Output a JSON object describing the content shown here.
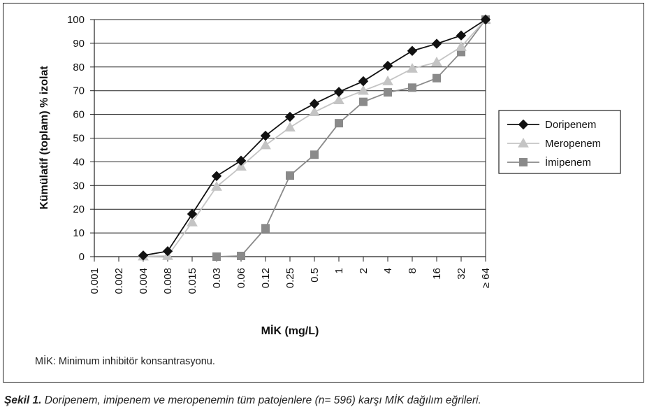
{
  "chart_data": {
    "type": "line",
    "xlabel": "MİK (mg/L)",
    "ylabel": "Kümülatif (toplam) % izolat",
    "ylim": [
      0,
      100
    ],
    "yticks": [
      0,
      10,
      20,
      30,
      40,
      50,
      60,
      70,
      80,
      90,
      100
    ],
    "grid": "horizontal",
    "legend_position": "right",
    "categories": [
      "0.001",
      "0.002",
      "0.004",
      "0.008",
      "0.015",
      "0.03",
      "0.06",
      "0.12",
      "0.25",
      "0.5",
      "1",
      "2",
      "4",
      "8",
      "16",
      "32",
      "≥ 64"
    ],
    "series": [
      {
        "name": "Doripenem",
        "marker": "diamond",
        "color": "#111111",
        "values": [
          null,
          null,
          0.5,
          2.3,
          18,
          34,
          40.5,
          51,
          59,
          64.5,
          69.5,
          74,
          80.5,
          86.8,
          89.8,
          93.3,
          100
        ]
      },
      {
        "name": "Meropenem",
        "marker": "triangle",
        "color": "#c4c4c4",
        "values": [
          null,
          null,
          0.1,
          0.3,
          14.5,
          29.5,
          38,
          47,
          54.5,
          61,
          66,
          70,
          74,
          79.3,
          82,
          88.5,
          100
        ]
      },
      {
        "name": "İmipenem",
        "marker": "square",
        "color": "#8a8a8a",
        "values": [
          null,
          null,
          null,
          null,
          null,
          0,
          0.3,
          12,
          34.2,
          43,
          56.3,
          65.3,
          69.3,
          71.3,
          75.3,
          86.3,
          100
        ]
      }
    ]
  },
  "footnote": "MİK: Minimum inhibitör konsantrasyonu.",
  "caption": {
    "label": "Şekil 1.",
    "text": " Doripenem, imipenem ve meropenemin tüm patojenlere (n= 596) karşı MİK dağılım eğrileri."
  }
}
